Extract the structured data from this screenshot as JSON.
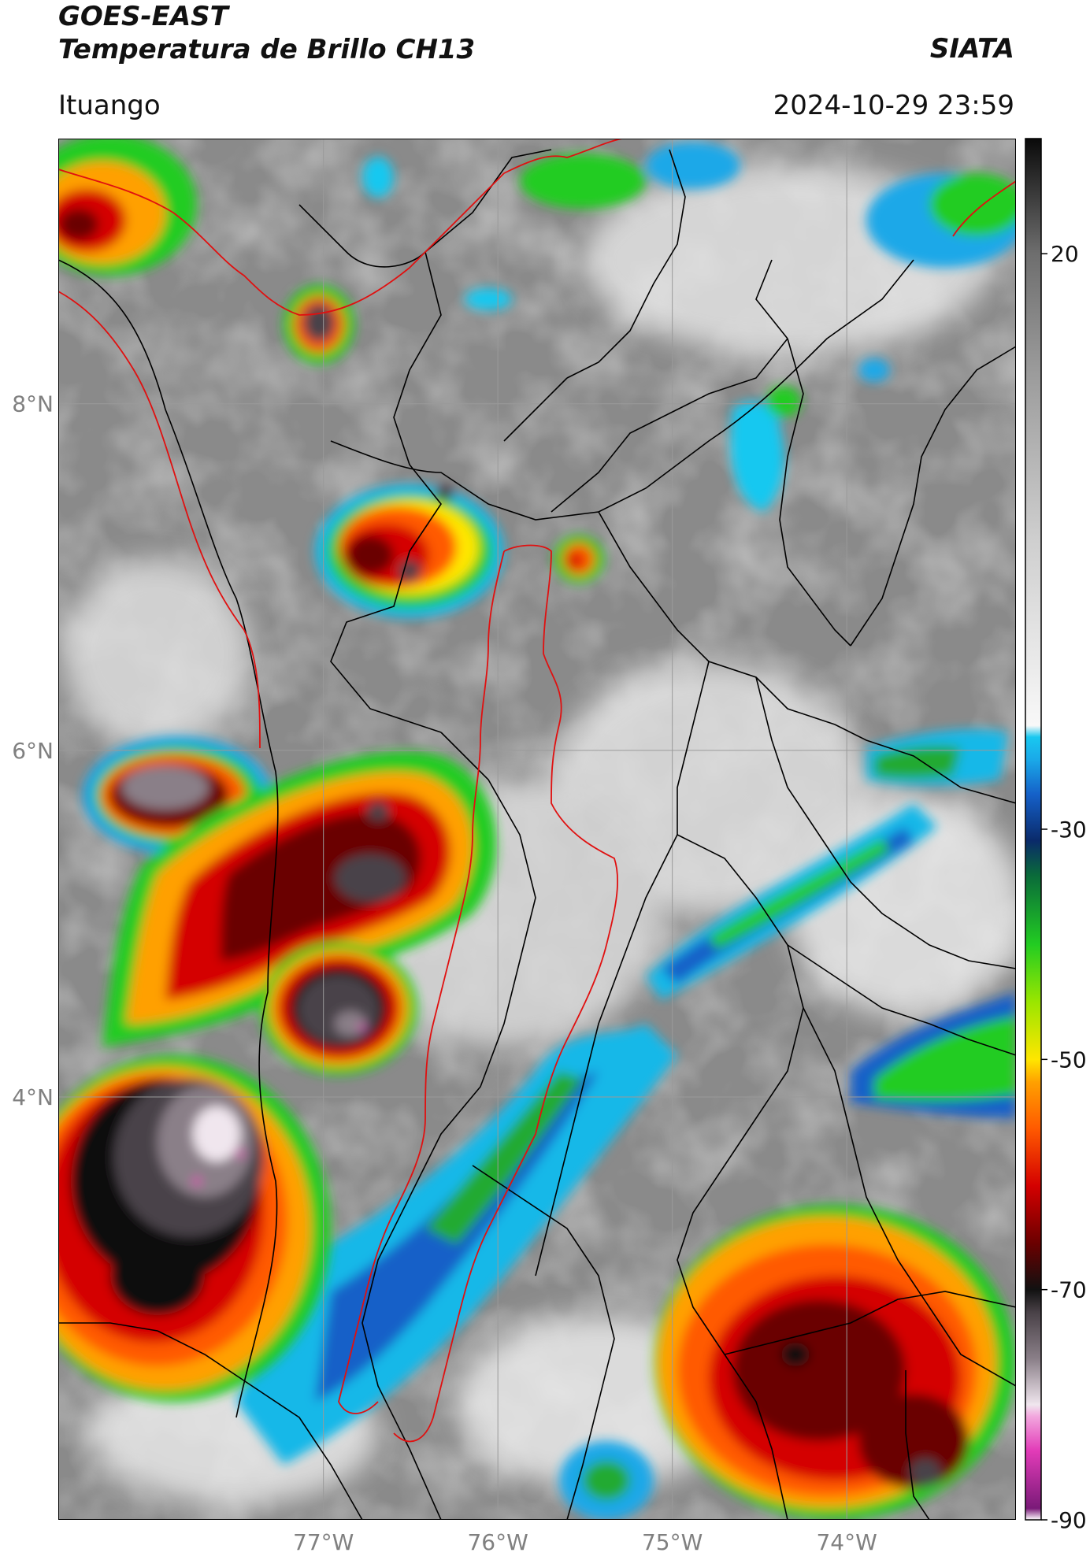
{
  "header": {
    "satellite": "GOES-EAST",
    "product": "Temperatura de Brillo CH13",
    "brand": "SIATA",
    "region": "Ituango",
    "datetime": "2024-10-29 23:59"
  },
  "map": {
    "lat_ticks": [
      {
        "value": 8,
        "label": "8°N"
      },
      {
        "value": 6,
        "label": "6°N"
      },
      {
        "value": 4,
        "label": "4°N"
      }
    ],
    "lon_ticks": [
      {
        "value": -77,
        "label": "77°W"
      },
      {
        "value": -76,
        "label": "76°W"
      },
      {
        "value": -75,
        "label": "75°W"
      },
      {
        "value": -74,
        "label": "74°W"
      }
    ],
    "lat_range": [
      1.56,
      9.53
    ],
    "lon_range": [
      -78.52,
      -73.03
    ],
    "base_color": "#8a8a8a"
  },
  "colorbar": {
    "range": [
      -90,
      30
    ],
    "ticks": [
      {
        "value": 20,
        "label": "20"
      },
      {
        "value": -30,
        "label": "-30"
      },
      {
        "value": -50,
        "label": "-50"
      },
      {
        "value": -70,
        "label": "-70"
      },
      {
        "value": -90,
        "label": "-90"
      }
    ],
    "stops": [
      {
        "v": -90,
        "color": "#ffffff"
      },
      {
        "v": -89,
        "color": "#7a1a78"
      },
      {
        "v": -84,
        "color": "#e23bb8"
      },
      {
        "v": -81,
        "color": "#f2a7de"
      },
      {
        "v": -80,
        "color": "#f0e6ee"
      },
      {
        "v": -76,
        "color": "#8a7f88"
      },
      {
        "v": -72,
        "color": "#4a4248"
      },
      {
        "v": -70,
        "color": "#111111"
      },
      {
        "v": -66,
        "color": "#6a0000"
      },
      {
        "v": -61,
        "color": "#d40000"
      },
      {
        "v": -56,
        "color": "#ff5a00"
      },
      {
        "v": -52,
        "color": "#ffa000"
      },
      {
        "v": -50,
        "color": "#ffe600"
      },
      {
        "v": -45,
        "color": "#9ae600"
      },
      {
        "v": -40,
        "color": "#22cc22"
      },
      {
        "v": -34,
        "color": "#0a6a3a"
      },
      {
        "v": -31,
        "color": "#0a2a6a"
      },
      {
        "v": -27,
        "color": "#1560c8"
      },
      {
        "v": -24,
        "color": "#1aa8e8"
      },
      {
        "v": -22,
        "color": "#19c8f0"
      },
      {
        "v": -21,
        "color": "#f8f8f8"
      },
      {
        "v": -5,
        "color": "#cfcfcf"
      },
      {
        "v": 10,
        "color": "#9a9a9a"
      },
      {
        "v": 20,
        "color": "#6e6e6e"
      },
      {
        "v": 30,
        "color": "#0a0a0a"
      }
    ]
  }
}
